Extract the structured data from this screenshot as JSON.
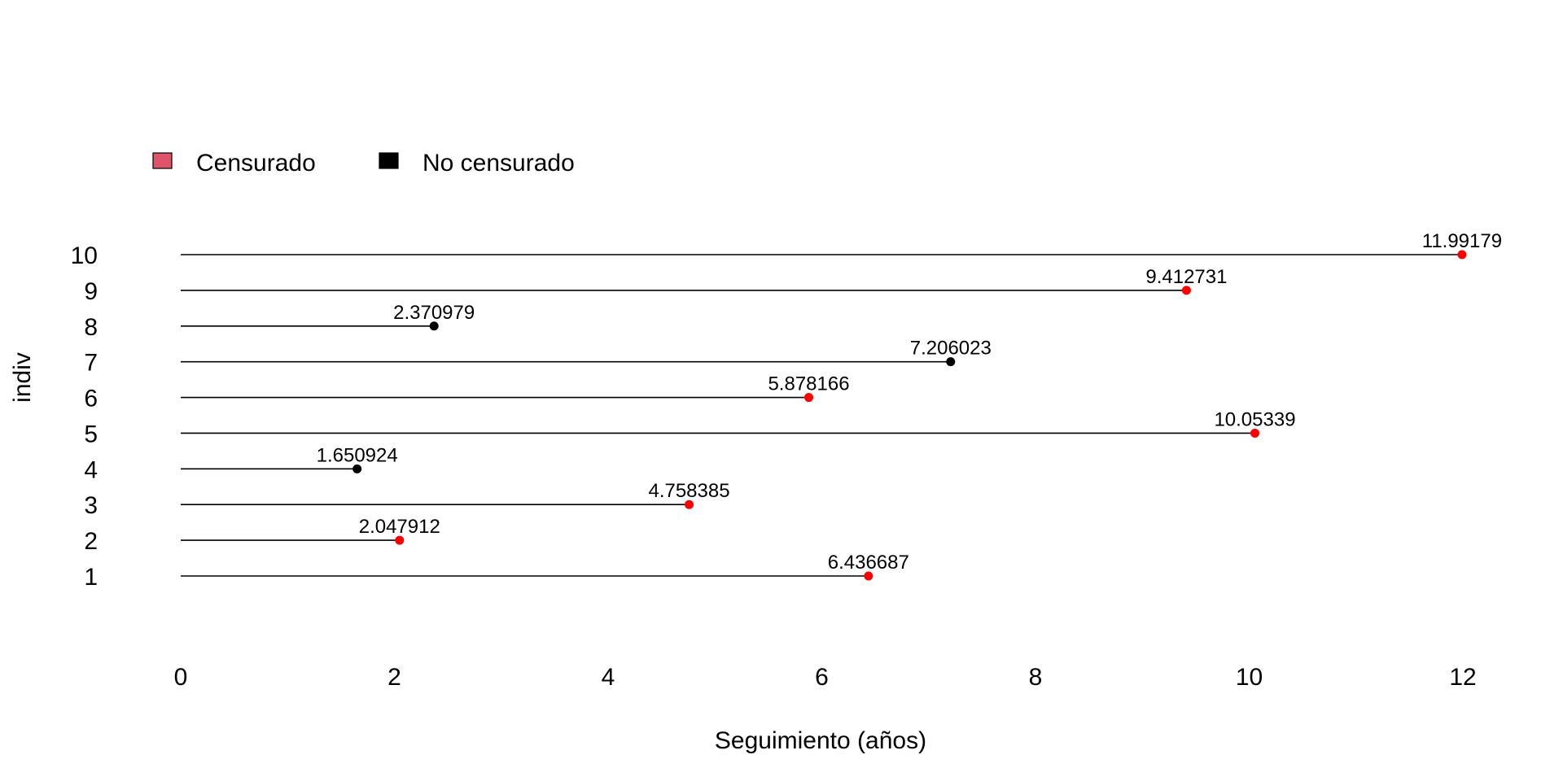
{
  "chart_data": {
    "type": "lollipop",
    "orientation": "horizontal",
    "xlabel": "Seguimiento (años)",
    "ylabel": "indiv",
    "xlim": [
      0,
      12
    ],
    "x_ticks": [
      0,
      2,
      4,
      6,
      8,
      10,
      12
    ],
    "x_tick_labels": [
      "0",
      "2",
      "4",
      "6",
      "8",
      "10",
      "12"
    ],
    "y_ticks": [
      1,
      2,
      3,
      4,
      5,
      6,
      7,
      8,
      9,
      10
    ],
    "y_tick_labels": [
      "1",
      "2",
      "3",
      "4",
      "5",
      "6",
      "7",
      "8",
      "9",
      "10"
    ],
    "grid": false,
    "legend_position": "top-left",
    "legend": [
      {
        "label": "Censurado",
        "swatch_color": "#df536b",
        "key": "censurado"
      },
      {
        "label": "No censurado",
        "swatch_color": "#000000",
        "key": "no_censurado"
      }
    ],
    "point_colors": {
      "censurado": "#ff0000",
      "no_censurado": "#000000"
    },
    "line_color": "#000000",
    "points": [
      {
        "indiv": 1,
        "value": 6.436687,
        "label": "6.436687",
        "status": "censurado"
      },
      {
        "indiv": 2,
        "value": 2.047912,
        "label": "2.047912",
        "status": "censurado"
      },
      {
        "indiv": 3,
        "value": 4.758385,
        "label": "4.758385",
        "status": "censurado"
      },
      {
        "indiv": 4,
        "value": 1.650924,
        "label": "1.650924",
        "status": "no_censurado"
      },
      {
        "indiv": 5,
        "value": 10.05339,
        "label": "10.05339",
        "status": "censurado"
      },
      {
        "indiv": 6,
        "value": 5.878166,
        "label": "5.878166",
        "status": "censurado"
      },
      {
        "indiv": 7,
        "value": 7.206023,
        "label": "7.206023",
        "status": "no_censurado"
      },
      {
        "indiv": 8,
        "value": 2.370979,
        "label": "2.370979",
        "status": "no_censurado"
      },
      {
        "indiv": 9,
        "value": 9.412731,
        "label": "9.412731",
        "status": "censurado"
      },
      {
        "indiv": 10,
        "value": 11.99179,
        "label": "11.99179",
        "status": "censurado"
      }
    ]
  }
}
